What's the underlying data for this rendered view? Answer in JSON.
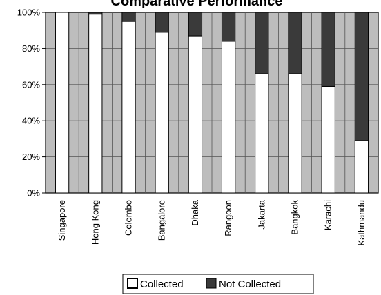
{
  "chart_data": {
    "type": "bar",
    "stacked": true,
    "percent_stacked": true,
    "title": "Comparative Performance",
    "categories": [
      "Singapore",
      "Hong Kong",
      "Colombo",
      "Bangalore",
      "Dhaka",
      "Rangoon",
      "Jakarta",
      "Bangkok",
      "Karachi",
      "Kathmandu"
    ],
    "series": [
      {
        "name": "Collected",
        "values": [
          100,
          99,
          95,
          89,
          87,
          84,
          66,
          66,
          59,
          29
        ],
        "color": "#ffffff"
      },
      {
        "name": "Not Collected",
        "values": [
          0,
          1,
          5,
          11,
          13,
          16,
          34,
          34,
          41,
          71
        ],
        "color": "#3a3a3a"
      }
    ],
    "ylim": [
      0,
      100
    ],
    "yticks": [
      "0%",
      "20%",
      "40%",
      "60%",
      "80%",
      "100%"
    ],
    "ytick_values": [
      0,
      20,
      40,
      60,
      80,
      100
    ],
    "grid": true,
    "plot_background": "#bdbdbd",
    "legend": {
      "position": "bottom",
      "entries": [
        "Collected",
        "Not Collected"
      ]
    }
  }
}
